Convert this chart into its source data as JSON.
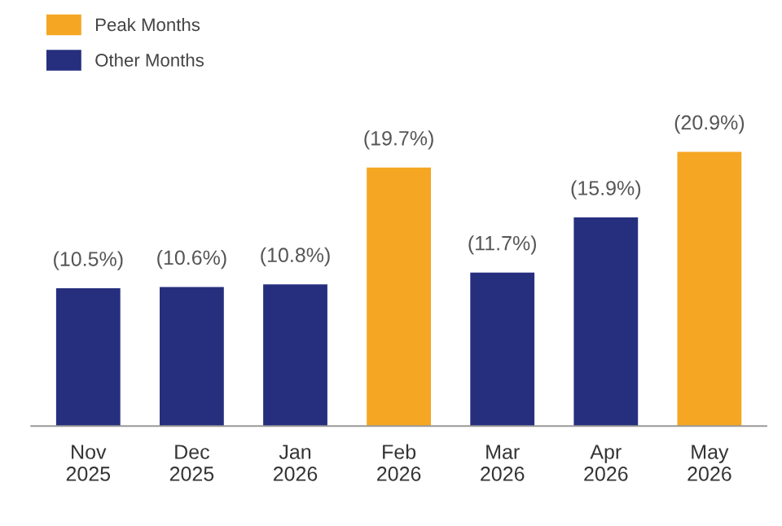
{
  "chart_data": {
    "type": "bar",
    "categories": [
      "Nov\n2025",
      "Dec\n2025",
      "Jan\n2026",
      "Feb\n2026",
      "Mar\n2026",
      "Apr\n2026",
      "May\n2026"
    ],
    "series": [
      {
        "name": "Peak Months",
        "color": "#f5a623",
        "values": [
          null,
          null,
          null,
          19.7,
          null,
          null,
          20.9
        ],
        "value_labels": [
          null,
          null,
          null,
          "(19.7%)",
          null,
          null,
          "(20.9%)"
        ]
      },
      {
        "name": "Other Months",
        "color": "#262f7e",
        "values": [
          10.5,
          10.6,
          10.8,
          null,
          11.7,
          15.9,
          null
        ],
        "value_labels": [
          "(10.5%)",
          "(10.6%)",
          "(10.8%)",
          null,
          "(11.7%)",
          "(15.9%)",
          null
        ]
      }
    ],
    "legend": "top left",
    "grid": false
  }
}
